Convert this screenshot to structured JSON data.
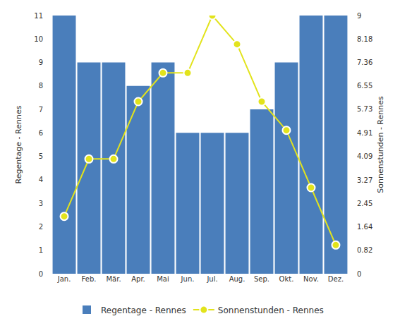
{
  "chart_data": {
    "type": "bar",
    "categories": [
      "Jan.",
      "Feb.",
      "Mär.",
      "Apr.",
      "Mai",
      "Jun.",
      "Jul.",
      "Aug.",
      "Sep.",
      "Okt.",
      "Nov.",
      "Dez."
    ],
    "y_label": "Regentage - Rennes",
    "y2_label": "Sonnenstunden - Rennes",
    "series": [
      {
        "name": "Regentage - Rennes",
        "type": "bar",
        "color": "#4a7ebb",
        "values": [
          11,
          9,
          9,
          8,
          9,
          6,
          6,
          6,
          7,
          9,
          11,
          11
        ]
      },
      {
        "name": "Sonnenstunden - Rennes",
        "type": "line",
        "axis": "y2",
        "color": "#e2e31c",
        "marker": "circle",
        "values": [
          2,
          4,
          4,
          6,
          7,
          7,
          9,
          8,
          6,
          5,
          3,
          1
        ]
      }
    ],
    "ylim": [
      0,
      11
    ],
    "yticks": [
      0,
      1,
      2,
      3,
      4,
      5,
      6,
      7,
      8,
      9,
      10,
      11
    ],
    "y2lim": [
      0,
      9
    ],
    "y2ticks": [
      0,
      0.82,
      1.64,
      2.45,
      3.27,
      4.09,
      4.91,
      5.73,
      6.55,
      7.36,
      8.18,
      9
    ],
    "grid": false,
    "legend": "bottom"
  }
}
